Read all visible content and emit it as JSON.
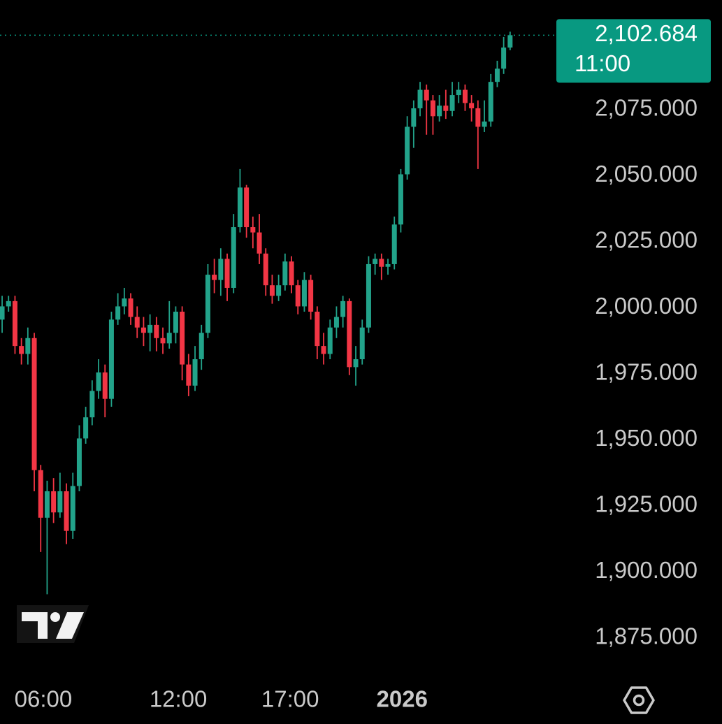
{
  "chart_data": {
    "type": "candlestick",
    "open": [
      1995,
      2000,
      2002,
      1985,
      1982,
      1988,
      1938,
      1920,
      1930,
      1922,
      1930,
      1915,
      1932,
      1950,
      1958,
      1968,
      1975,
      1965,
      1995,
      2000,
      2003,
      1996,
      1992,
      1990,
      1993,
      1988,
      1986,
      1990,
      1998,
      1978,
      1970,
      1980,
      1990,
      2012,
      2010,
      2018,
      2007,
      2030,
      2045,
      2030,
      2028,
      2020,
      2008,
      2004,
      2008,
      2017,
      2008,
      2000,
      2010,
      1998,
      1985,
      1982,
      1992,
      1996,
      2002,
      1977,
      1980,
      1992,
      2016,
      2018,
      2015,
      2016,
      2031,
      2050,
      2068,
      2075,
      2082,
      2078,
      2072,
      2076,
      2074,
      2080,
      2082,
      2077,
      2075,
      2068,
      2070,
      2085,
      2090,
      2098
    ],
    "high": [
      2004,
      2004,
      2004,
      1988,
      1992,
      1990,
      1940,
      1934,
      1935,
      1937,
      1933,
      1937,
      1955,
      1962,
      1972,
      1980,
      1978,
      1998,
      2005,
      2007,
      2005,
      2000,
      1996,
      1997,
      1996,
      1992,
      2002,
      2000,
      2000,
      1982,
      1985,
      1993,
      2016,
      2018,
      2022,
      2020,
      2035,
      2052,
      2046,
      2034,
      2035,
      2022,
      2012,
      2012,
      2020,
      2019,
      2010,
      2013,
      2012,
      2000,
      1990,
      1995,
      2000,
      2004,
      2003,
      1985,
      1995,
      2019,
      2020,
      2020,
      2018,
      2034,
      2052,
      2072,
      2078,
      2085,
      2084,
      2080,
      2080,
      2082,
      2085,
      2085,
      2084,
      2080,
      2078,
      2078,
      2088,
      2093,
      2102,
      2104
    ],
    "low": [
      1990,
      1998,
      1982,
      1978,
      1978,
      1930,
      1907,
      1891,
      1918,
      1920,
      1910,
      1912,
      1930,
      1948,
      1955,
      1965,
      1958,
      1962,
      1993,
      1997,
      1993,
      1988,
      1985,
      1983,
      1983,
      1982,
      1984,
      1986,
      1972,
      1966,
      1968,
      1976,
      1988,
      2005,
      2004,
      2002,
      2005,
      2028,
      2026,
      2022,
      2016,
      2004,
      2001,
      2002,
      2006,
      2005,
      1997,
      1998,
      1995,
      1980,
      1978,
      1980,
      1988,
      1992,
      1974,
      1970,
      1978,
      1990,
      2012,
      2010,
      2012,
      2014,
      2028,
      2048,
      2060,
      2072,
      2065,
      2065,
      2070,
      2071,
      2072,
      2077,
      2074,
      2070,
      2052,
      2066,
      2068,
      2083,
      2088,
      2097
    ],
    "close": [
      2000,
      2002,
      1985,
      1982,
      1988,
      1938,
      1920,
      1930,
      1922,
      1930,
      1915,
      1932,
      1950,
      1958,
      1968,
      1975,
      1965,
      1995,
      2000,
      2003,
      1996,
      1992,
      1990,
      1993,
      1988,
      1986,
      1990,
      1998,
      1978,
      1970,
      1980,
      1990,
      2012,
      2010,
      2018,
      2007,
      2030,
      2045,
      2030,
      2028,
      2020,
      2008,
      2004,
      2008,
      2017,
      2008,
      2000,
      2010,
      1998,
      1985,
      1982,
      1992,
      1996,
      2002,
      1977,
      1980,
      1992,
      2016,
      2018,
      2015,
      2016,
      2031,
      2050,
      2068,
      2075,
      2082,
      2078,
      2072,
      2076,
      2074,
      2080,
      2082,
      2077,
      2075,
      2068,
      2070,
      2085,
      2090,
      2098,
      2102.684
    ],
    "up_color": "#22a38a",
    "down_color": "#f23645",
    "xlim": [
      -0.33,
      85.54
    ],
    "xticks": [
      {
        "value": 6.4,
        "label": "06:00"
      },
      {
        "value": 27.4,
        "label": "12:00"
      },
      {
        "value": 44.8,
        "label": "17:00"
      },
      {
        "value": 62.2,
        "label": "2026",
        "bold": true
      }
    ],
    "ylim": [
      1862,
      2116
    ],
    "yticks": [
      {
        "value": 2075,
        "label": "2,075.000"
      },
      {
        "value": 2050,
        "label": "2,050.000"
      },
      {
        "value": 2025,
        "label": "2,025.000"
      },
      {
        "value": 2000,
        "label": "2,000.000"
      },
      {
        "value": 1975,
        "label": "1,975.000"
      },
      {
        "value": 1950,
        "label": "1,950.000"
      },
      {
        "value": 1925,
        "label": "1,925.000"
      },
      {
        "value": 1900,
        "label": "1,900.000"
      },
      {
        "value": 1875,
        "label": "1,875.000"
      }
    ],
    "last_price": {
      "value": 2102.684,
      "label": "2,102.684"
    },
    "countdown": "11:00",
    "label_color": "#089981"
  }
}
